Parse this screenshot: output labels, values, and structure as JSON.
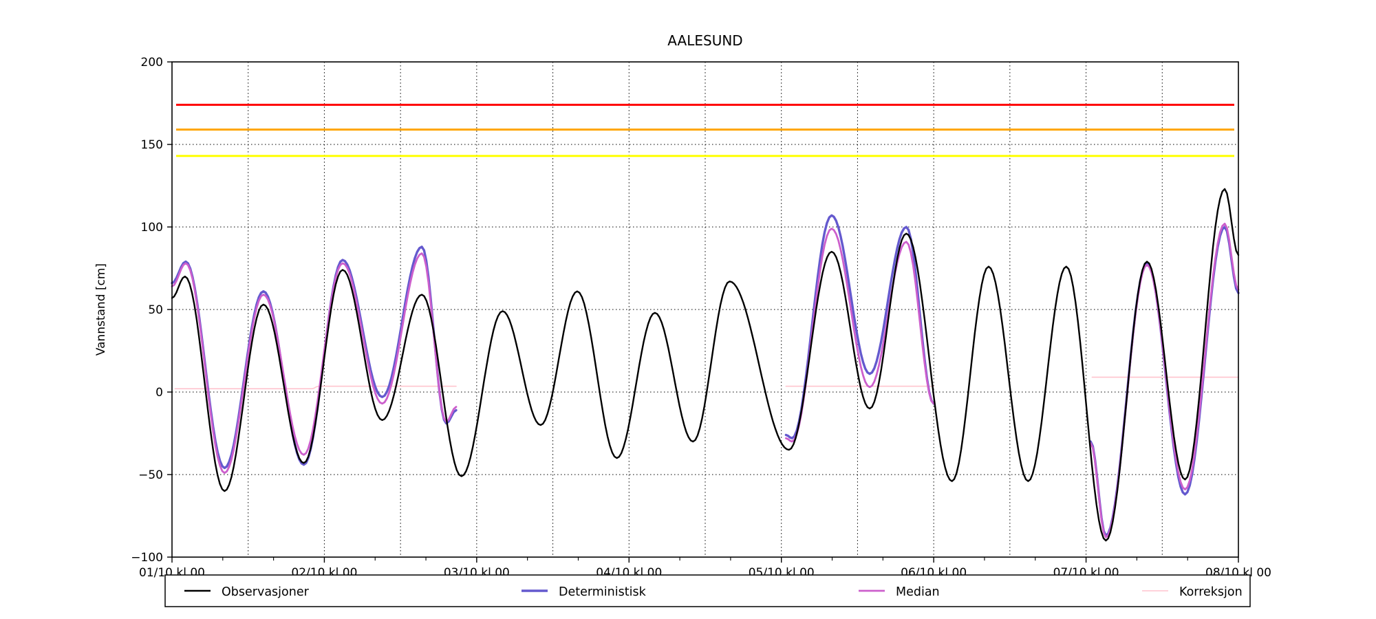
{
  "title": "AALESUND",
  "ylabel": "Vannstand [cm]",
  "colors": {
    "observasjoner": "#000000",
    "deterministisk": "#6459CE",
    "median": "#CC5FCC",
    "korreksjon": "#FFC4CE",
    "threshold_red": "#FF0000",
    "threshold_orange": "#FFA500",
    "threshold_yellow": "#FFFF00",
    "grid": "#000000",
    "axis": "#000000"
  },
  "chart_data": {
    "type": "line",
    "title": "AALESUND",
    "xlabel": "",
    "ylabel": "Vannstand [cm]",
    "ylim": [
      -100,
      200
    ],
    "ytick_values": [
      200,
      150,
      100,
      50,
      0,
      -50,
      -100
    ],
    "ytick_labels": [
      "200",
      "150",
      "100",
      "50",
      "0",
      "−50",
      "−100"
    ],
    "xlim_days": [
      0,
      7
    ],
    "xtick_labels": [
      "01/10 kl 00",
      "02/10 kl 00",
      "03/10 kl 00",
      "04/10 kl 00",
      "05/10 kl 00",
      "06/10 kl 00",
      "07/10 kl 00",
      "08/10 kl 00"
    ],
    "grid": "dotted black, horizontal every 50 cm, vertical every 12 h",
    "legend_position": "bottom",
    "thresholds": [
      {
        "name": "red-warning-level",
        "value": 174,
        "color": "#FF0000"
      },
      {
        "name": "orange-warning-level",
        "value": 159,
        "color": "#FFA500"
      },
      {
        "name": "yellow-warning-level",
        "value": 143,
        "color": "#FFFF00"
      }
    ],
    "series": [
      {
        "name": "Observasjoner",
        "color": "#000000",
        "width": 2.4,
        "segments": [
          [
            [
              0.0,
              57
            ],
            [
              0.085,
              70
            ],
            [
              0.345,
              -60
            ],
            [
              0.6,
              53
            ],
            [
              0.865,
              -43
            ],
            [
              1.12,
              74
            ],
            [
              1.38,
              -17
            ],
            [
              1.64,
              59
            ],
            [
              1.9,
              -51
            ],
            [
              2.17,
              49
            ],
            [
              2.42,
              -20
            ],
            [
              2.66,
              61
            ],
            [
              2.92,
              -40
            ],
            [
              3.17,
              48
            ],
            [
              3.42,
              -30
            ],
            [
              3.66,
              67
            ],
            [
              4.05,
              -35
            ],
            [
              4.33,
              85
            ],
            [
              4.58,
              -10
            ],
            [
              4.82,
              96
            ],
            [
              5.12,
              -54
            ],
            [
              5.36,
              76
            ],
            [
              5.62,
              -54
            ],
            [
              5.87,
              76
            ],
            [
              6.13,
              -90
            ],
            [
              6.4,
              79
            ],
            [
              6.65,
              -53
            ],
            [
              6.91,
              123
            ],
            [
              7.0,
              83
            ]
          ]
        ]
      },
      {
        "name": "Deterministisk",
        "color": "#6459CE",
        "width": 3.4,
        "segments": [
          [
            [
              0.0,
              66
            ],
            [
              0.09,
              79
            ],
            [
              0.345,
              -46
            ],
            [
              0.6,
              61
            ],
            [
              0.865,
              -44
            ],
            [
              1.12,
              80
            ],
            [
              1.38,
              -3
            ],
            [
              1.64,
              88
            ],
            [
              1.8,
              -19
            ],
            [
              1.865,
              -11
            ]
          ],
          [
            [
              4.03,
              -26
            ],
            [
              4.07,
              -28
            ],
            [
              4.33,
              107
            ],
            [
              4.58,
              11
            ],
            [
              4.82,
              100
            ],
            [
              5.0,
              -7
            ]
          ],
          [
            [
              6.03,
              -30
            ],
            [
              6.13,
              -87
            ],
            [
              6.4,
              78
            ],
            [
              6.65,
              -62
            ],
            [
              6.91,
              100
            ],
            [
              7.0,
              60
            ]
          ]
        ]
      },
      {
        "name": "Median",
        "color": "#CC5FCC",
        "width": 2.8,
        "segments": [
          [
            [
              0.0,
              64
            ],
            [
              0.09,
              78
            ],
            [
              0.345,
              -49
            ],
            [
              0.6,
              59
            ],
            [
              0.865,
              -38
            ],
            [
              1.12,
              78
            ],
            [
              1.38,
              -7
            ],
            [
              1.64,
              84
            ],
            [
              1.8,
              -18
            ],
            [
              1.865,
              -9
            ]
          ],
          [
            [
              4.03,
              -28
            ],
            [
              4.07,
              -30
            ],
            [
              4.33,
              99
            ],
            [
              4.58,
              3
            ],
            [
              4.82,
              91
            ],
            [
              5.0,
              -7
            ]
          ],
          [
            [
              6.03,
              -31
            ],
            [
              6.13,
              -88
            ],
            [
              6.4,
              77
            ],
            [
              6.65,
              -59
            ],
            [
              6.91,
              102
            ],
            [
              7.0,
              62
            ]
          ]
        ]
      },
      {
        "name": "Korreksjon",
        "color": "#FFC4CE",
        "width": 1.6,
        "segments": [
          [
            [
              0.02,
              2
            ],
            [
              0.92,
              2
            ],
            [
              0.96,
              3.5
            ],
            [
              1.865,
              3.5
            ]
          ],
          [
            [
              4.03,
              3.5
            ],
            [
              5.0,
              3.5
            ]
          ],
          [
            [
              6.04,
              9
            ],
            [
              7.0,
              9
            ]
          ]
        ]
      }
    ]
  },
  "legend": {
    "entries": [
      {
        "label": "Observasjoner",
        "color": "#000000"
      },
      {
        "label": "Deterministisk",
        "color": "#6459CE"
      },
      {
        "label": "Median",
        "color": "#CC5FCC"
      },
      {
        "label": "Korreksjon",
        "color": "#FFC4CE"
      }
    ]
  }
}
